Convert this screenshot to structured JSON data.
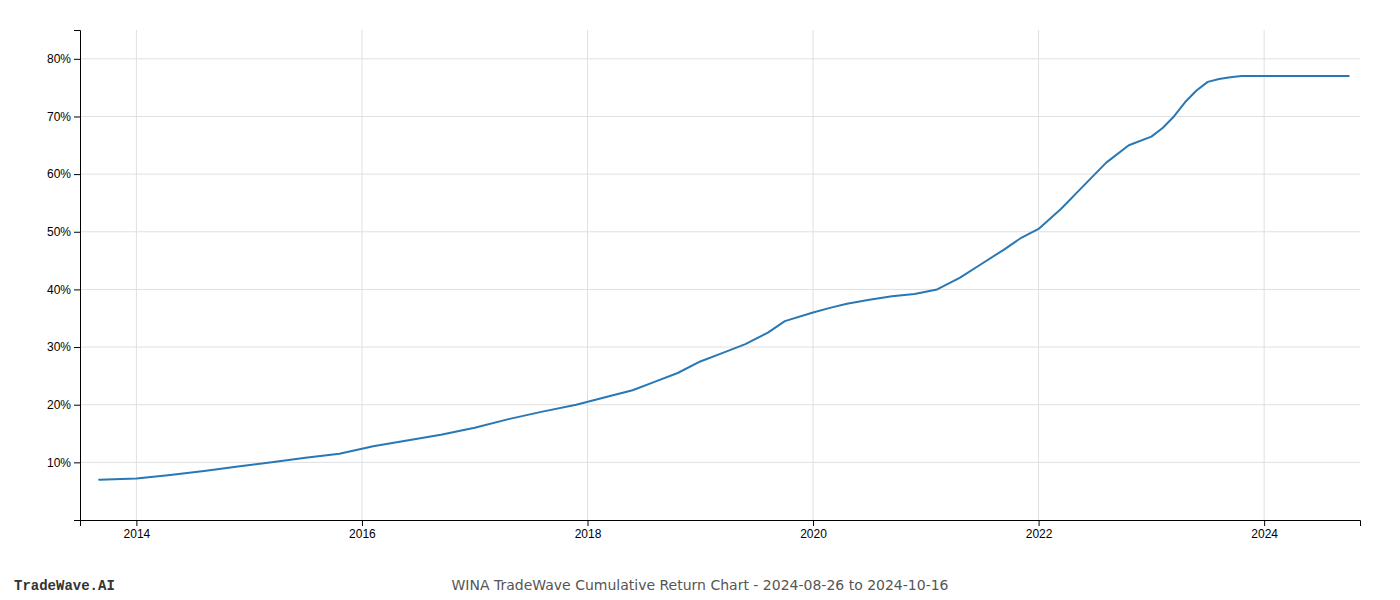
{
  "chart_data": {
    "type": "line",
    "title": "WINA TradeWave Cumulative Return Chart - 2024-08-26 to 2024-10-16",
    "annotations": [
      "TradeWave.AI"
    ],
    "color": "#2878b5",
    "grid": true,
    "xlim": [
      2013.5,
      2024.85
    ],
    "ylim": [
      0,
      85
    ],
    "xticks": [
      2014,
      2016,
      2018,
      2020,
      2022,
      2024
    ],
    "yticks": [
      {
        "value": 10,
        "label": "10%"
      },
      {
        "value": 20,
        "label": "20%"
      },
      {
        "value": 30,
        "label": "30%"
      },
      {
        "value": 40,
        "label": "40%"
      },
      {
        "value": 50,
        "label": "50%"
      },
      {
        "value": 60,
        "label": "60%"
      },
      {
        "value": 70,
        "label": "70%"
      },
      {
        "value": 80,
        "label": "80%"
      }
    ],
    "x": [
      2013.67,
      2014.0,
      2014.3,
      2014.6,
      2014.9,
      2015.2,
      2015.5,
      2015.8,
      2016.1,
      2016.4,
      2016.7,
      2017.0,
      2017.3,
      2017.6,
      2017.9,
      2018.2,
      2018.4,
      2018.6,
      2018.8,
      2019.0,
      2019.2,
      2019.4,
      2019.6,
      2019.75,
      2020.0,
      2020.15,
      2020.3,
      2020.5,
      2020.7,
      2020.9,
      2021.1,
      2021.3,
      2021.5,
      2021.7,
      2021.85,
      2022.0,
      2022.2,
      2022.4,
      2022.6,
      2022.8,
      2023.0,
      2023.1,
      2023.2,
      2023.3,
      2023.4,
      2023.5,
      2023.6,
      2023.7,
      2023.8,
      2024.0,
      2024.2,
      2024.5,
      2024.75
    ],
    "values": [
      7.0,
      7.2,
      7.8,
      8.5,
      9.3,
      10.0,
      10.8,
      11.5,
      12.8,
      13.8,
      14.8,
      16.0,
      17.5,
      18.8,
      20.0,
      21.5,
      22.5,
      24.0,
      25.5,
      27.5,
      29.0,
      30.5,
      32.5,
      34.5,
      36.0,
      36.8,
      37.5,
      38.2,
      38.8,
      39.2,
      40.0,
      42.0,
      44.5,
      47.0,
      49.0,
      50.5,
      54.0,
      58.0,
      62.0,
      65.0,
      66.5,
      68.0,
      70.0,
      72.5,
      74.5,
      76.0,
      76.5,
      76.8,
      77.0,
      77.0,
      77.0,
      77.0,
      77.0
    ]
  }
}
